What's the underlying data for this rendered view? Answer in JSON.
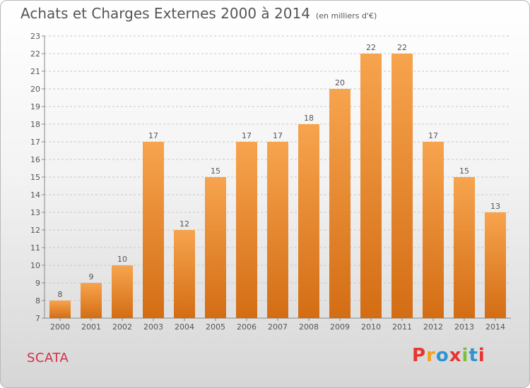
{
  "header": {
    "title": "Achats et Charges Externes 2000 à 2014",
    "unit": "(en milliers d'€)"
  },
  "footer": {
    "commune": "SCATA",
    "logo_letters": [
      "P",
      "r",
      "o",
      "x",
      "i",
      "t",
      "i"
    ],
    "logo_colors": [
      "#e8352d",
      "#f4a11c",
      "#2f93d1",
      "#e8352d",
      "#7bbf3a",
      "#2f93d1",
      "#e8352d"
    ]
  },
  "colors": {
    "bar_top": "#f7a44e",
    "bar_bottom": "#d36d14",
    "grid": "#c8c8c8",
    "axis_text": "#555555"
  },
  "chart_data": {
    "type": "bar",
    "title": "Achats et Charges Externes 2000 à 2014",
    "subtitle": "(en milliers d'€)",
    "xlabel": "",
    "ylabel": "",
    "categories": [
      "2000",
      "2001",
      "2002",
      "2003",
      "2004",
      "2005",
      "2006",
      "2007",
      "2008",
      "2009",
      "2010",
      "2011",
      "2012",
      "2013",
      "2014"
    ],
    "values": [
      8,
      9,
      10,
      17,
      12,
      15,
      17,
      17,
      18,
      20,
      22,
      22,
      17,
      15,
      13
    ],
    "ylim": [
      7,
      23
    ],
    "yticks": [
      7,
      8,
      9,
      10,
      11,
      12,
      13,
      14,
      15,
      16,
      17,
      18,
      19,
      20,
      21,
      22,
      23
    ],
    "grid": true,
    "legend": "none"
  }
}
